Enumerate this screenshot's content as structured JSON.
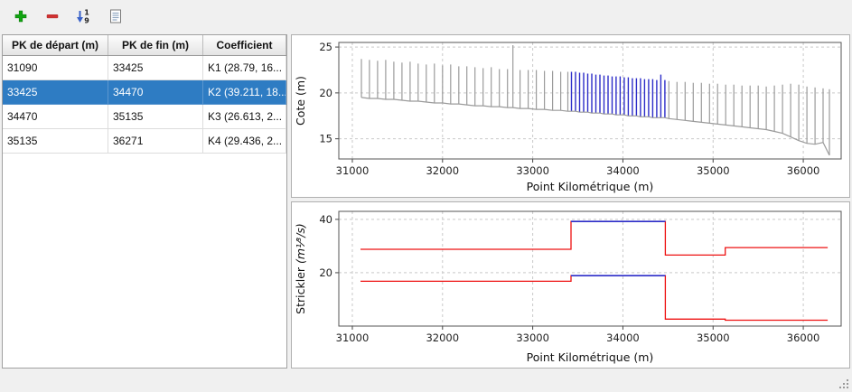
{
  "toolbar": {
    "buttons": [
      {
        "id": "add",
        "icon": "plus-icon"
      },
      {
        "id": "remove",
        "icon": "minus-icon"
      },
      {
        "id": "sort",
        "icon": "sort-numeric-icon"
      },
      {
        "id": "report",
        "icon": "report-icon"
      }
    ]
  },
  "table": {
    "columns": [
      "PK de départ (m)",
      "PK de fin (m)",
      "Coefficient"
    ],
    "rows": [
      {
        "pk_start": "31090",
        "pk_end": "33425",
        "coefficient": "K1 (28.79, 16...",
        "selected": false
      },
      {
        "pk_start": "33425",
        "pk_end": "34470",
        "coefficient": "K2 (39.211, 18...",
        "selected": true
      },
      {
        "pk_start": "34470",
        "pk_end": "35135",
        "coefficient": "K3 (26.613, 2...",
        "selected": false
      },
      {
        "pk_start": "35135",
        "pk_end": "36271",
        "coefficient": "K4 (29.436, 2...",
        "selected": false
      }
    ]
  },
  "colors": {
    "selection": "#2e7cc3",
    "profile_gray": "#9b9b9b",
    "profile_selected": "#2c2cc8",
    "step_red": "#ee1111",
    "step_selected": "#2c2cc8"
  },
  "chart_data": [
    {
      "type": "bar",
      "title": "",
      "xlabel": "Point Kilométrique (m)",
      "ylabel": "Cote (m)",
      "xlim": [
        30850,
        36420
      ],
      "ylim": [
        12.8,
        25.5
      ],
      "xticks": [
        31000,
        32000,
        33000,
        34000,
        35000,
        36000
      ],
      "yticks": [
        15,
        20,
        25
      ],
      "grid": true,
      "selected_range": [
        33425,
        34470
      ],
      "bars_format": "[pk, cote_bottom, cote_top]",
      "bars": [
        [
          31100,
          19.5,
          23.7
        ],
        [
          31190,
          19.4,
          23.6
        ],
        [
          31280,
          19.4,
          23.5
        ],
        [
          31370,
          19.3,
          23.6
        ],
        [
          31460,
          19.3,
          23.4
        ],
        [
          31550,
          19.2,
          23.3
        ],
        [
          31640,
          19.1,
          23.4
        ],
        [
          31730,
          19.1,
          23.2
        ],
        [
          31820,
          19.0,
          23.1
        ],
        [
          31910,
          18.9,
          23.2
        ],
        [
          32000,
          18.9,
          23.0
        ],
        [
          32090,
          18.8,
          23.1
        ],
        [
          32180,
          18.8,
          22.9
        ],
        [
          32270,
          18.7,
          22.9
        ],
        [
          32360,
          18.6,
          22.8
        ],
        [
          32450,
          18.6,
          22.7
        ],
        [
          32540,
          18.5,
          22.8
        ],
        [
          32630,
          18.5,
          22.6
        ],
        [
          32720,
          18.4,
          22.6
        ],
        [
          32780,
          18.4,
          25.2
        ],
        [
          32860,
          18.3,
          22.5
        ],
        [
          32950,
          18.3,
          22.5
        ],
        [
          33040,
          18.2,
          22.5
        ],
        [
          33130,
          18.2,
          22.4
        ],
        [
          33220,
          18.1,
          22.4
        ],
        [
          33310,
          18.1,
          22.3
        ],
        [
          33390,
          18.0,
          22.3
        ],
        [
          33430,
          18.0,
          22.3
        ],
        [
          33475,
          18.0,
          22.3
        ],
        [
          33520,
          17.9,
          22.2
        ],
        [
          33565,
          17.9,
          22.2
        ],
        [
          33610,
          17.9,
          22.1
        ],
        [
          33655,
          17.8,
          22.1
        ],
        [
          33700,
          17.8,
          22.0
        ],
        [
          33745,
          17.8,
          22.0
        ],
        [
          33790,
          17.7,
          21.9
        ],
        [
          33835,
          17.7,
          21.9
        ],
        [
          33880,
          17.7,
          21.8
        ],
        [
          33925,
          17.6,
          21.8
        ],
        [
          33970,
          17.6,
          21.8
        ],
        [
          34015,
          17.6,
          21.7
        ],
        [
          34060,
          17.5,
          21.7
        ],
        [
          34105,
          17.5,
          21.6
        ],
        [
          34150,
          17.5,
          21.6
        ],
        [
          34195,
          17.4,
          21.6
        ],
        [
          34240,
          17.4,
          21.5
        ],
        [
          34285,
          17.4,
          21.5
        ],
        [
          34330,
          17.3,
          21.5
        ],
        [
          34375,
          17.3,
          21.4
        ],
        [
          34420,
          17.3,
          22.0
        ],
        [
          34465,
          17.3,
          21.4
        ],
        [
          34510,
          17.2,
          21.3
        ],
        [
          34600,
          17.1,
          21.2
        ],
        [
          34690,
          17.0,
          21.2
        ],
        [
          34780,
          16.9,
          21.1
        ],
        [
          34870,
          16.8,
          21.1
        ],
        [
          34960,
          16.7,
          21.0
        ],
        [
          35050,
          16.6,
          21.0
        ],
        [
          35140,
          16.5,
          20.9
        ],
        [
          35230,
          16.4,
          20.9
        ],
        [
          35320,
          16.3,
          20.8
        ],
        [
          35410,
          16.2,
          20.8
        ],
        [
          35500,
          16.1,
          20.8
        ],
        [
          35590,
          16.0,
          20.7
        ],
        [
          35680,
          15.8,
          20.8
        ],
        [
          35770,
          15.6,
          20.9
        ],
        [
          35860,
          15.2,
          21.0
        ],
        [
          35950,
          14.8,
          20.9
        ],
        [
          36040,
          14.5,
          20.7
        ],
        [
          36130,
          14.4,
          20.6
        ],
        [
          36220,
          14.6,
          20.5
        ],
        [
          36290,
          13.2,
          20.4
        ]
      ]
    },
    {
      "type": "line",
      "title": "",
      "xlabel": "Point Kilométrique (m)",
      "ylabel": "Strickler",
      "ylabel_math": "(m¹⁄³/s)",
      "xlim": [
        30850,
        36420
      ],
      "ylim": [
        0,
        43
      ],
      "xticks": [
        31000,
        32000,
        33000,
        34000,
        35000,
        36000
      ],
      "yticks": [
        20,
        40
      ],
      "grid": true,
      "breakpoints": [
        31090,
        33425,
        34470,
        35135,
        36271
      ],
      "series": [
        {
          "values": [
            28.79,
            39.211,
            26.613,
            29.436
          ]
        },
        {
          "values": [
            16.8,
            18.9,
            2.6,
            2.2
          ]
        }
      ],
      "selected_segment": 1
    }
  ],
  "statusbar": {
    "text": ""
  }
}
